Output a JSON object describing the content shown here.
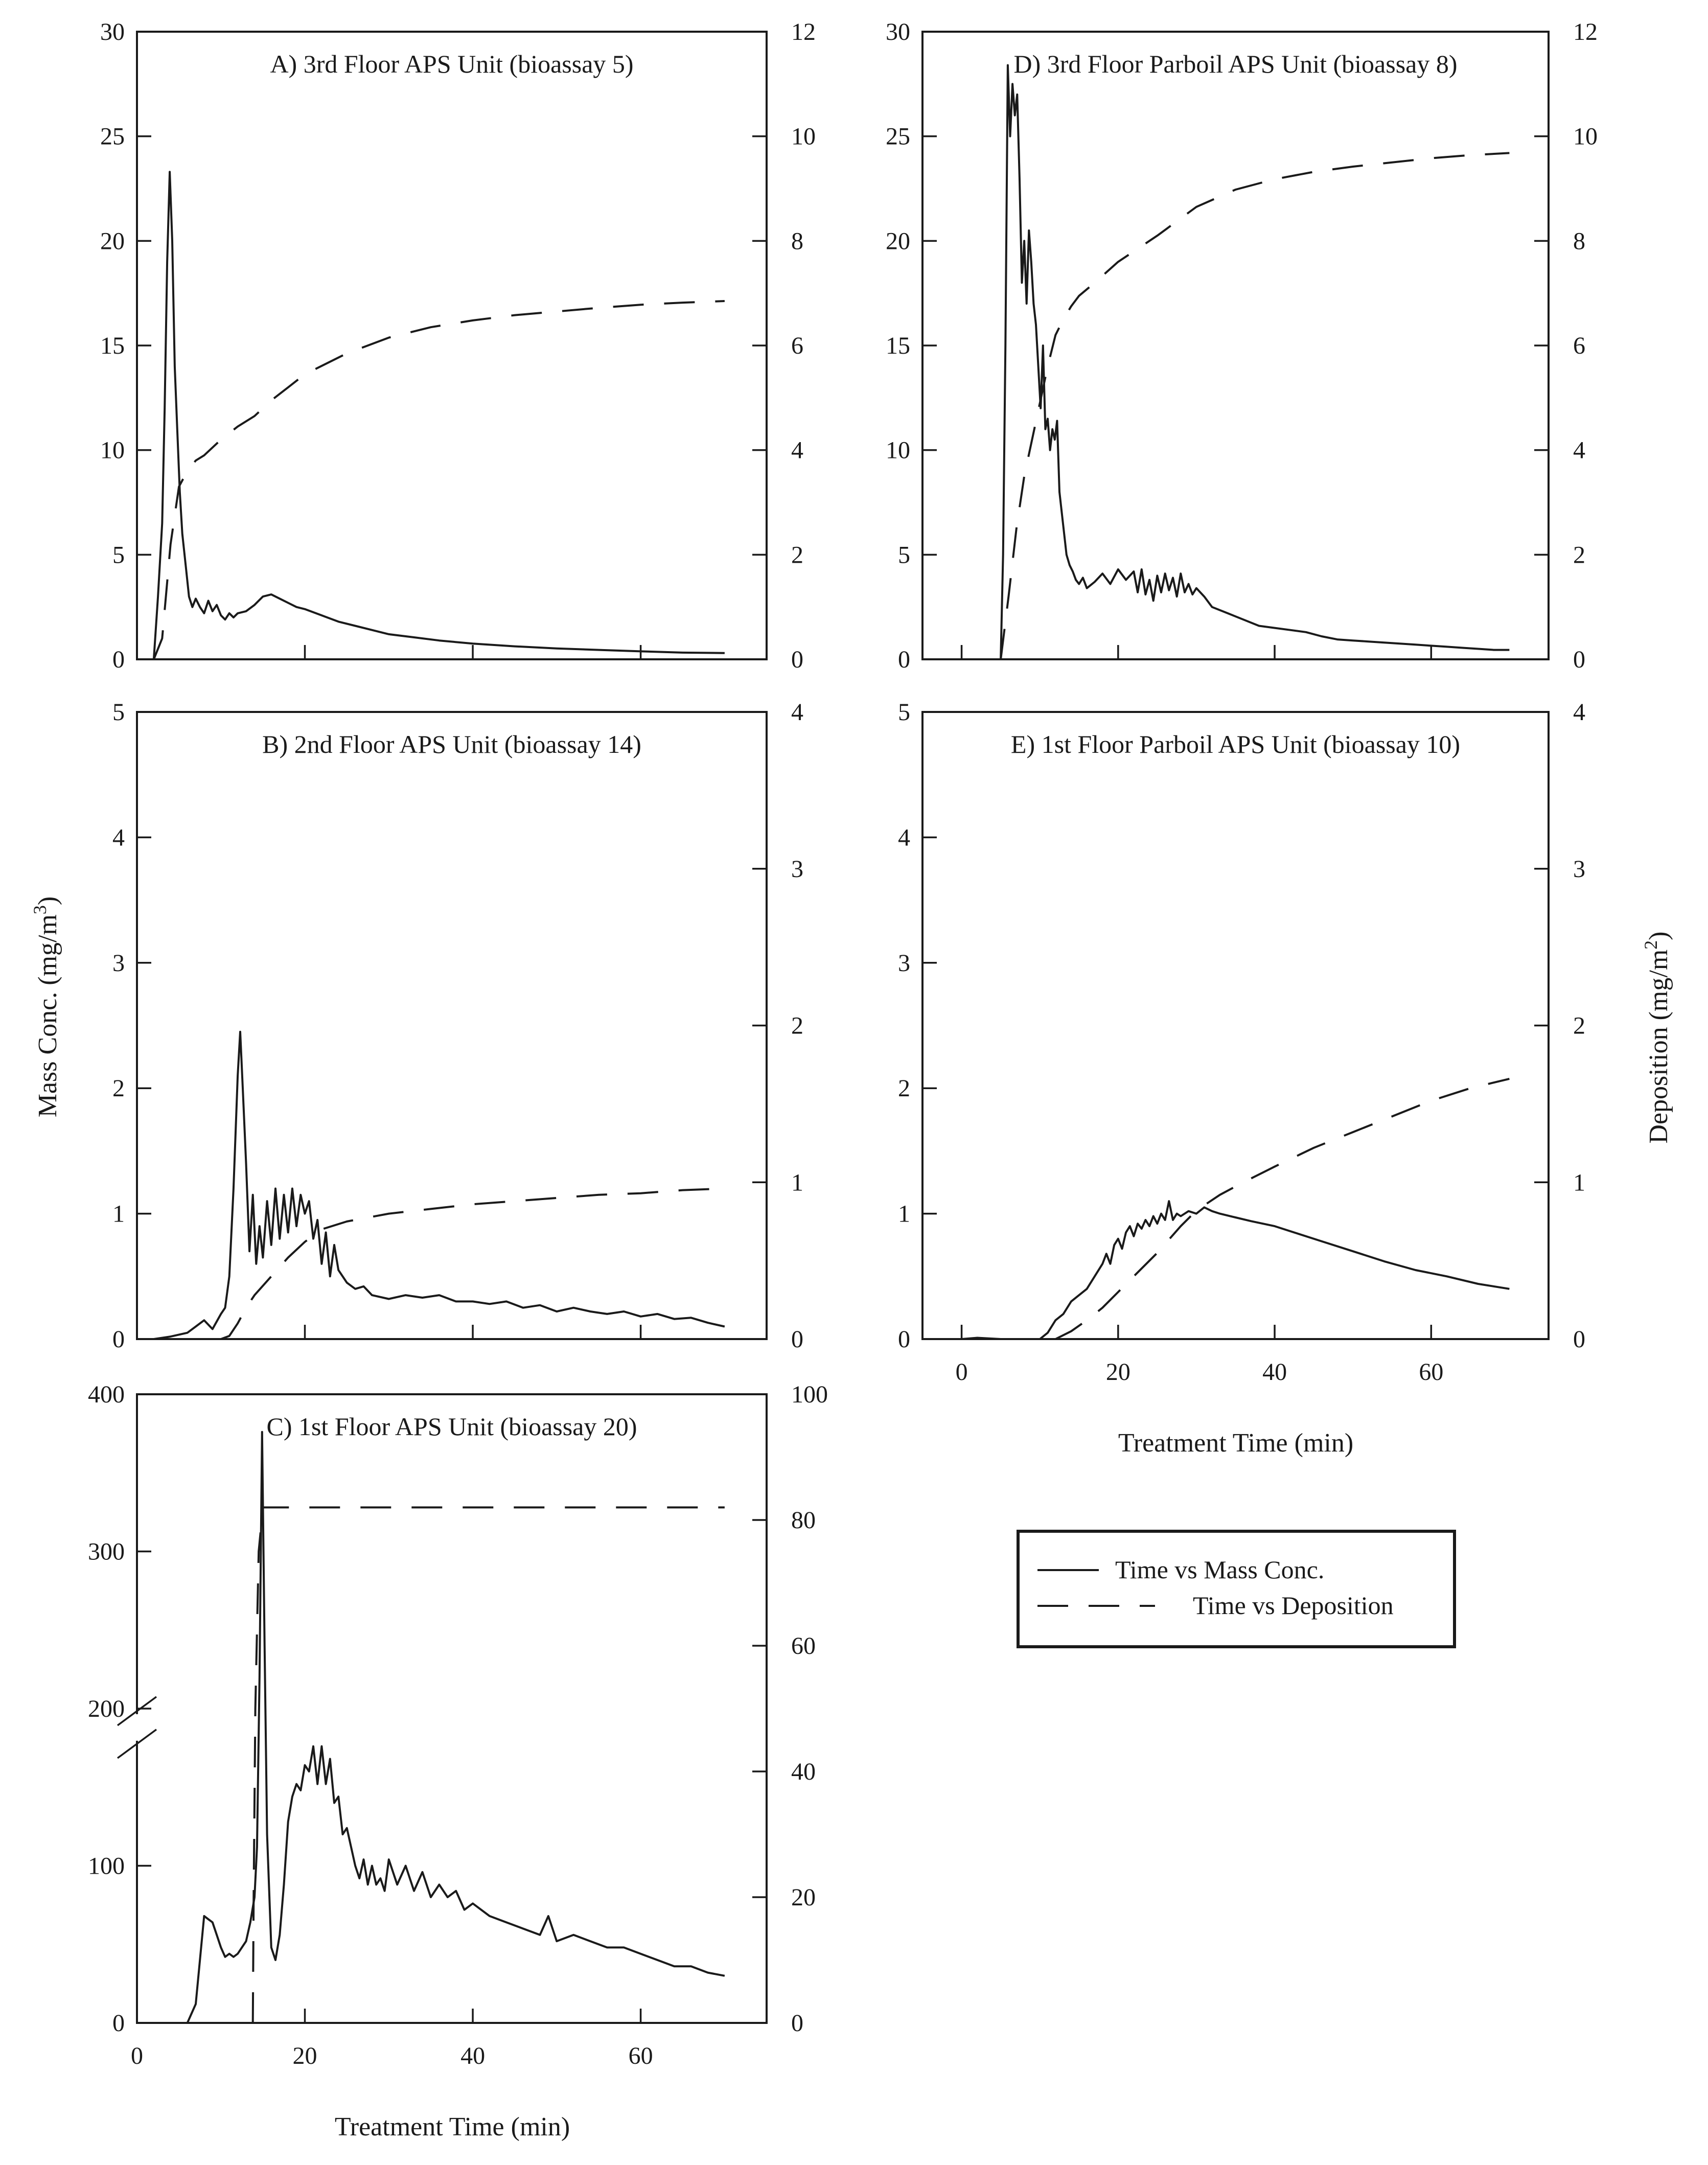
{
  "legend": {
    "items": [
      {
        "label": "Time vs Mass Conc.",
        "style": "solid"
      },
      {
        "label": "Time vs Deposition",
        "style": "dashed"
      }
    ]
  },
  "axis_titles": {
    "left": "Mass Conc. (mg/m3)",
    "right": "Deposition (mg/m2)",
    "bottom_right_column": "Treatment Time (min)",
    "bottom_left_column": "Treatment Time (min)"
  },
  "chart_data": [
    {
      "id": "A",
      "type": "line",
      "title": "A) 3rd Floor APS Unit (bioassay 5)",
      "xlim": [
        0,
        75
      ],
      "ylim": [
        0,
        30
      ],
      "y2lim": [
        0,
        12
      ],
      "yticks": [
        0,
        5,
        10,
        15,
        20,
        25,
        30
      ],
      "y2ticks": [
        0,
        2,
        4,
        6,
        8,
        10,
        12
      ],
      "xticks": [
        0,
        20,
        40,
        60
      ],
      "show_xtick_labels": false,
      "series": [
        {
          "name": "Time vs Mass Conc.",
          "axis": "left",
          "style": "solid",
          "x": [
            2,
            2.5,
            3,
            3.3,
            3.6,
            3.9,
            4.2,
            4.5,
            4.8,
            5.1,
            5.4,
            5.8,
            6.2,
            6.6,
            7,
            7.5,
            8,
            8.5,
            9,
            9.5,
            10,
            10.5,
            11,
            11.5,
            12,
            13,
            14,
            15,
            16,
            17,
            18,
            19,
            20,
            22,
            24,
            26,
            28,
            30,
            33,
            36,
            40,
            45,
            50,
            55,
            60,
            65,
            70
          ],
          "values": [
            0,
            3,
            6.5,
            12,
            19,
            23.3,
            20,
            14,
            11,
            8,
            6,
            4.5,
            3,
            2.5,
            2.9,
            2.5,
            2.2,
            2.8,
            2.3,
            2.6,
            2.1,
            1.9,
            2.2,
            2,
            2.2,
            2.3,
            2.6,
            3,
            3.1,
            2.9,
            2.7,
            2.5,
            2.4,
            2.1,
            1.8,
            1.6,
            1.4,
            1.2,
            1.05,
            0.9,
            0.75,
            0.62,
            0.52,
            0.45,
            0.38,
            0.32,
            0.3
          ]
        },
        {
          "name": "Time vs Deposition",
          "axis": "right",
          "style": "dashed",
          "x": [
            2,
            3,
            4,
            5,
            6,
            7,
            8,
            10,
            12,
            14,
            16,
            18,
            20,
            25,
            30,
            35,
            40,
            45,
            50,
            55,
            60,
            65,
            70
          ],
          "values": [
            0,
            0.4,
            2.2,
            3.3,
            3.6,
            3.8,
            3.9,
            4.2,
            4.45,
            4.65,
            4.95,
            5.2,
            5.45,
            5.85,
            6.15,
            6.35,
            6.48,
            6.58,
            6.65,
            6.72,
            6.78,
            6.82,
            6.85
          ]
        }
      ]
    },
    {
      "id": "B",
      "type": "line",
      "title": "B) 2nd Floor APS Unit (bioassay 14)",
      "xlim": [
        0,
        75
      ],
      "ylim": [
        0,
        5
      ],
      "y2lim": [
        0,
        4
      ],
      "yticks": [
        0,
        1,
        2,
        3,
        4,
        5
      ],
      "y2ticks": [
        0,
        1,
        2,
        3,
        4
      ],
      "xticks": [
        0,
        20,
        40,
        60
      ],
      "show_xtick_labels": false,
      "series": [
        {
          "name": "Time vs Mass Conc.",
          "axis": "left",
          "style": "solid",
          "x": [
            0,
            2,
            4,
            6,
            7,
            8,
            9,
            10,
            10.5,
            11,
            11.5,
            12,
            12.3,
            12.6,
            13,
            13.4,
            13.8,
            14.2,
            14.6,
            15,
            15.5,
            16,
            16.5,
            17,
            17.5,
            18,
            18.5,
            19,
            19.5,
            20,
            20.5,
            21,
            21.5,
            22,
            22.5,
            23,
            23.5,
            24,
            25,
            26,
            27,
            28,
            30,
            32,
            34,
            36,
            38,
            40,
            42,
            44,
            46,
            48,
            50,
            52,
            54,
            56,
            58,
            60,
            62,
            64,
            66,
            68,
            70
          ],
          "values": [
            0,
            0,
            0.02,
            0.05,
            0.1,
            0.15,
            0.08,
            0.2,
            0.25,
            0.5,
            1.2,
            2.1,
            2.45,
            2.0,
            1.4,
            0.7,
            1.15,
            0.6,
            0.9,
            0.65,
            1.1,
            0.75,
            1.2,
            0.8,
            1.15,
            0.85,
            1.2,
            0.9,
            1.15,
            1.0,
            1.1,
            0.8,
            0.95,
            0.6,
            0.85,
            0.5,
            0.75,
            0.55,
            0.45,
            0.4,
            0.42,
            0.35,
            0.32,
            0.35,
            0.33,
            0.35,
            0.3,
            0.3,
            0.28,
            0.3,
            0.25,
            0.27,
            0.22,
            0.25,
            0.22,
            0.2,
            0.22,
            0.18,
            0.2,
            0.16,
            0.17,
            0.13,
            0.1
          ]
        },
        {
          "name": "Time vs Deposition",
          "axis": "right",
          "style": "dashed",
          "x": [
            10,
            11,
            12,
            13,
            14,
            16,
            18,
            20,
            22,
            25,
            30,
            35,
            40,
            45,
            50,
            55,
            60,
            65,
            70
          ],
          "values": [
            0,
            0.02,
            0.1,
            0.2,
            0.28,
            0.4,
            0.52,
            0.62,
            0.7,
            0.75,
            0.8,
            0.83,
            0.86,
            0.88,
            0.9,
            0.92,
            0.93,
            0.95,
            0.96
          ]
        }
      ]
    },
    {
      "id": "C",
      "type": "line",
      "title": "C) 1st Floor APS Unit (bioassay 20)",
      "xlim": [
        0,
        75
      ],
      "ylim": [
        0,
        400
      ],
      "y2lim": [
        0,
        100
      ],
      "yticks": [
        0,
        100,
        200,
        300,
        400
      ],
      "y2ticks": [
        0,
        20,
        40,
        60,
        80,
        100
      ],
      "xticks": [
        0,
        20,
        40,
        60
      ],
      "xlabel": "Treatment Time (min)",
      "show_xtick_labels": true,
      "y_axis_break": true,
      "series": [
        {
          "name": "Time vs Mass Conc.",
          "axis": "right",
          "style": "solid",
          "x": [
            6,
            7,
            7.5,
            8,
            8.5,
            9,
            9.5,
            10,
            10.5,
            11,
            11.5,
            12,
            12.5,
            13,
            13.5,
            14,
            14.3,
            14.6,
            14.9,
            15.2,
            15.5,
            16,
            16.5,
            17,
            17.5,
            18,
            18.5,
            19,
            19.5,
            20,
            20.5,
            21,
            21.5,
            22,
            22.5,
            23,
            23.5,
            24,
            24.5,
            25,
            25.5,
            26,
            26.5,
            27,
            27.5,
            28,
            28.5,
            29,
            29.5,
            30,
            31,
            32,
            33,
            34,
            35,
            36,
            37,
            38,
            39,
            40,
            42,
            44,
            46,
            48,
            49,
            50,
            52,
            54,
            56,
            58,
            60,
            62,
            64,
            66,
            68,
            70
          ],
          "values": [
            0,
            3,
            10,
            17,
            16.5,
            16,
            14,
            12,
            10.5,
            11,
            10.5,
            11,
            12,
            13,
            16,
            20,
            28,
            55,
            94,
            60,
            30,
            12,
            10,
            14,
            22,
            32,
            36,
            38,
            37,
            41,
            40,
            44,
            38,
            44,
            38,
            42,
            35,
            36,
            30,
            31,
            28,
            25,
            23,
            26,
            22,
            25,
            22,
            23,
            21,
            26,
            22,
            25,
            21,
            24,
            20,
            22,
            20,
            21,
            18,
            19,
            17,
            16,
            15,
            14,
            17,
            13,
            14,
            13,
            12,
            12,
            11,
            10,
            9,
            9,
            8,
            7.5
          ]
        },
        {
          "name": "Time vs Deposition",
          "axis": "right",
          "style": "dashed",
          "x": [
            13.8,
            13.9,
            14.1,
            14.5,
            15,
            20,
            30,
            40,
            50,
            60,
            70
          ],
          "values": [
            0,
            20,
            50,
            75,
            82,
            82,
            82,
            82,
            82,
            82,
            82
          ]
        }
      ]
    },
    {
      "id": "D",
      "type": "line",
      "title": "D) 3rd Floor Parboil APS Unit (bioassay 8)",
      "xlim": [
        -5,
        75
      ],
      "ylim": [
        0,
        30
      ],
      "y2lim": [
        0,
        12
      ],
      "yticks": [
        0,
        5,
        10,
        15,
        20,
        25,
        30
      ],
      "y2ticks": [
        0,
        2,
        4,
        6,
        8,
        10,
        12
      ],
      "xticks": [
        0,
        20,
        40,
        60
      ],
      "show_xtick_labels": false,
      "series": [
        {
          "name": "Time vs Mass Conc.",
          "axis": "left",
          "style": "solid",
          "x": [
            5,
            5.3,
            5.6,
            5.9,
            6.2,
            6.5,
            6.8,
            7.1,
            7.4,
            7.7,
            8,
            8.3,
            8.6,
            8.9,
            9.2,
            9.5,
            9.8,
            10.1,
            10.4,
            10.7,
            11,
            11.3,
            11.6,
            11.9,
            12.2,
            12.5,
            12.8,
            13.1,
            13.4,
            13.8,
            14.2,
            14.6,
            15,
            15.5,
            16,
            17,
            18,
            19,
            20,
            21,
            22,
            22.5,
            23,
            23.5,
            24,
            24.5,
            25,
            25.5,
            26,
            26.5,
            27,
            27.5,
            28,
            28.5,
            29,
            29.5,
            30,
            31,
            32,
            34,
            36,
            38,
            40,
            42,
            44,
            46,
            48,
            50,
            52,
            54,
            56,
            58,
            60,
            62,
            64,
            66,
            68,
            70
          ],
          "values": [
            0,
            5,
            15,
            28.4,
            25,
            27.5,
            26,
            27,
            23,
            18,
            20,
            17,
            20.5,
            19,
            17,
            16,
            14,
            12,
            15,
            11,
            11.5,
            10,
            11,
            10.5,
            11.4,
            8,
            7,
            6,
            5,
            4.5,
            4.2,
            3.8,
            3.6,
            3.9,
            3.4,
            3.7,
            4.1,
            3.6,
            4.3,
            3.8,
            4.2,
            3.2,
            4.3,
            3.1,
            3.8,
            2.8,
            4.0,
            3.2,
            4.1,
            3.3,
            3.9,
            3.0,
            4.1,
            3.2,
            3.6,
            3.1,
            3.4,
            3.0,
            2.5,
            2.2,
            1.9,
            1.6,
            1.5,
            1.4,
            1.3,
            1.1,
            0.95,
            0.9,
            0.85,
            0.8,
            0.75,
            0.7,
            0.65,
            0.6,
            0.55,
            0.5,
            0.45,
            0.45
          ]
        },
        {
          "name": "Time vs Deposition",
          "axis": "right",
          "style": "dashed",
          "x": [
            5,
            6,
            7,
            8,
            9,
            10,
            11,
            12,
            13,
            14,
            15,
            17,
            20,
            25,
            30,
            35,
            40,
            45,
            50,
            55,
            60,
            65,
            70
          ],
          "values": [
            0,
            1.2,
            2.5,
            3.5,
            4.2,
            4.9,
            5.6,
            6.2,
            6.5,
            6.75,
            6.95,
            7.2,
            7.6,
            8.1,
            8.65,
            8.98,
            9.18,
            9.32,
            9.42,
            9.5,
            9.58,
            9.64,
            9.68
          ]
        }
      ]
    },
    {
      "id": "E",
      "type": "line",
      "title": "E) 1st Floor Parboil APS Unit (bioassay 10)",
      "xlim": [
        -5,
        75
      ],
      "ylim": [
        0,
        5
      ],
      "y2lim": [
        0,
        4
      ],
      "yticks": [
        0,
        1,
        2,
        3,
        4,
        5
      ],
      "y2ticks": [
        0,
        1,
        2,
        3,
        4
      ],
      "xticks": [
        0,
        20,
        40,
        60
      ],
      "xlabel": "Treatment Time (min)",
      "show_xtick_labels": true,
      "series": [
        {
          "name": "Time vs Mass Conc.",
          "axis": "left",
          "style": "solid",
          "x": [
            -3,
            0,
            2,
            5,
            8,
            10,
            11,
            12,
            13,
            14,
            15,
            16,
            17,
            18,
            18.5,
            19,
            19.5,
            20,
            20.5,
            21,
            21.5,
            22,
            22.5,
            23,
            23.5,
            24,
            24.5,
            25,
            25.5,
            26,
            26.5,
            27,
            27.5,
            28,
            29,
            30,
            31,
            32,
            33,
            35,
            37,
            40,
            43,
            46,
            50,
            54,
            58,
            62,
            66,
            70
          ],
          "values": [
            0,
            0,
            0.01,
            0,
            0,
            0,
            0.05,
            0.15,
            0.2,
            0.3,
            0.35,
            0.4,
            0.5,
            0.6,
            0.68,
            0.6,
            0.75,
            0.8,
            0.72,
            0.85,
            0.9,
            0.82,
            0.92,
            0.88,
            0.95,
            0.9,
            0.98,
            0.92,
            1.0,
            0.95,
            1.1,
            0.95,
            1.0,
            0.98,
            1.02,
            1.0,
            1.05,
            1.02,
            1.0,
            0.97,
            0.94,
            0.9,
            0.84,
            0.78,
            0.7,
            0.62,
            0.55,
            0.5,
            0.44,
            0.4
          ]
        },
        {
          "name": "Time vs Deposition",
          "axis": "right",
          "style": "dashed",
          "x": [
            12,
            14,
            16,
            18,
            20,
            22,
            25,
            28,
            30,
            33,
            36,
            40,
            45,
            50,
            55,
            60,
            65,
            70
          ],
          "values": [
            0,
            0.05,
            0.12,
            0.2,
            0.3,
            0.4,
            0.55,
            0.72,
            0.82,
            0.92,
            1.0,
            1.1,
            1.22,
            1.32,
            1.42,
            1.52,
            1.6,
            1.66
          ]
        }
      ]
    }
  ]
}
